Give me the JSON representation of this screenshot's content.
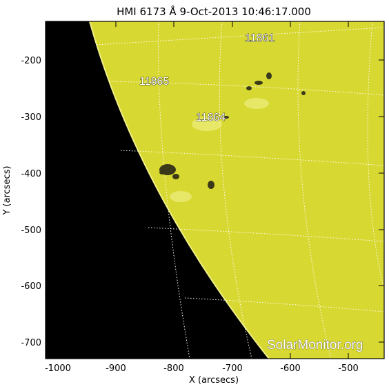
{
  "title": "HMI 6173 Å   9-Oct-2013 10:46:17.000",
  "axes": {
    "xlabel": "X (arcsecs)",
    "ylabel": "Y (arcsecs)",
    "x_ticks": [
      "-1000",
      "-900",
      "-800",
      "-700",
      "-600",
      "-500"
    ],
    "y_ticks": [
      "-200",
      "-300",
      "-400",
      "-500",
      "-600",
      "-700"
    ]
  },
  "regions": [
    {
      "label": "11861"
    },
    {
      "label": "11865"
    },
    {
      "label": "11864"
    }
  ],
  "watermark": "SolarMonitor.org",
  "colors": {
    "disk": "#d8d832",
    "space": "#000000",
    "grid": "#ffffff",
    "frame": "#000000"
  }
}
